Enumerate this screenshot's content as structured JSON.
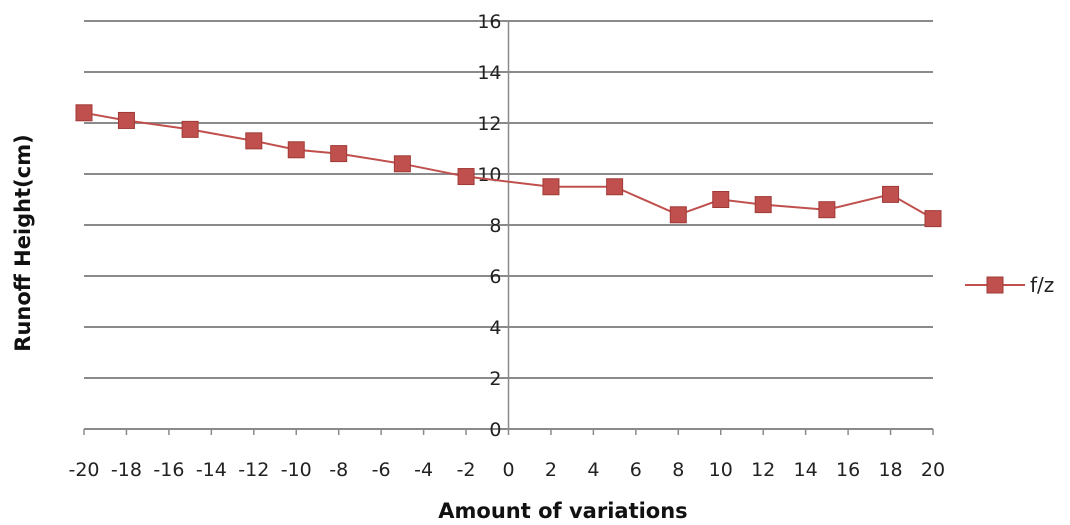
{
  "chart_data": {
    "type": "line",
    "title": "",
    "xlabel": "Amount of variations",
    "ylabel": "Runoff Height(cm)",
    "xlim": [
      -20,
      20
    ],
    "ylim": [
      0,
      16
    ],
    "x_ticks": [
      "-20",
      "-18",
      "-16",
      "-14",
      "-12",
      "-10",
      "-8",
      "-6",
      "-4",
      "-2",
      "0",
      "2",
      "4",
      "6",
      "8",
      "10",
      "12",
      "14",
      "16",
      "18",
      "20"
    ],
    "y_ticks": [
      "0",
      "2",
      "4",
      "6",
      "8",
      "10",
      "12",
      "14",
      "16"
    ],
    "grid": "horizontal",
    "legend_position": "right",
    "series": [
      {
        "name": "f/z",
        "color": "#c0504d",
        "marker": "square",
        "x": [
          -20,
          -18,
          -15,
          -12,
          -10,
          -8,
          -5,
          -2,
          2,
          5,
          8,
          10,
          12,
          15,
          18,
          20
        ],
        "y": [
          12.4,
          12.1,
          11.75,
          11.3,
          10.95,
          10.8,
          10.4,
          9.9,
          9.5,
          9.5,
          8.4,
          9.0,
          8.8,
          8.6,
          9.2,
          8.25
        ]
      }
    ]
  }
}
